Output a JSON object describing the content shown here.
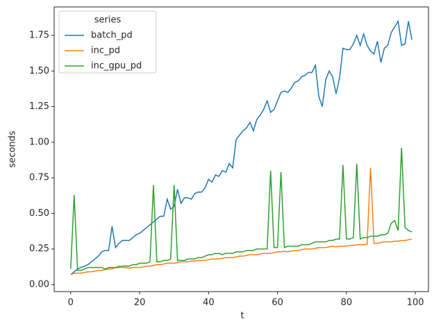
{
  "chart_data": {
    "type": "line",
    "x_label": "t",
    "y_label": "seconds",
    "legend_title": "series",
    "legend_loc": "upper left",
    "x": [
      0,
      1,
      2,
      3,
      4,
      5,
      6,
      7,
      8,
      9,
      10,
      11,
      12,
      13,
      14,
      15,
      16,
      17,
      18,
      19,
      20,
      21,
      22,
      23,
      24,
      25,
      26,
      27,
      28,
      29,
      30,
      31,
      32,
      33,
      34,
      35,
      36,
      37,
      38,
      39,
      40,
      41,
      42,
      43,
      44,
      45,
      46,
      47,
      48,
      49,
      50,
      51,
      52,
      53,
      54,
      55,
      56,
      57,
      58,
      59,
      60,
      61,
      62,
      63,
      64,
      65,
      66,
      67,
      68,
      69,
      70,
      71,
      72,
      73,
      74,
      75,
      76,
      77,
      78,
      79,
      80,
      81,
      82,
      83,
      84,
      85,
      86,
      87,
      88,
      89,
      90,
      91,
      92,
      93,
      94,
      95,
      96,
      97,
      98,
      99
    ],
    "series": [
      {
        "name": "batch_pd",
        "color": "#1f77b4",
        "values": [
          0.07,
          0.09,
          0.11,
          0.12,
          0.13,
          0.14,
          0.16,
          0.18,
          0.2,
          0.23,
          0.24,
          0.24,
          0.41,
          0.26,
          0.29,
          0.31,
          0.31,
          0.31,
          0.33,
          0.35,
          0.36,
          0.38,
          0.4,
          0.42,
          0.44,
          0.46,
          0.48,
          0.48,
          0.6,
          0.53,
          0.55,
          0.67,
          0.57,
          0.61,
          0.61,
          0.6,
          0.64,
          0.65,
          0.65,
          0.68,
          0.74,
          0.72,
          0.77,
          0.76,
          0.8,
          0.79,
          0.85,
          0.82,
          1.02,
          1.05,
          1.08,
          1.1,
          1.14,
          1.08,
          1.16,
          1.19,
          1.23,
          1.29,
          1.21,
          1.23,
          1.29,
          1.35,
          1.36,
          1.35,
          1.38,
          1.42,
          1.43,
          1.46,
          1.47,
          1.49,
          1.49,
          1.54,
          1.32,
          1.25,
          1.44,
          1.5,
          1.46,
          1.34,
          1.45,
          1.66,
          1.65,
          1.65,
          1.69,
          1.75,
          1.68,
          1.76,
          1.68,
          1.64,
          1.62,
          1.71,
          1.56,
          1.66,
          1.68,
          1.77,
          1.81,
          1.85,
          1.68,
          1.69,
          1.85,
          1.72
        ]
      },
      {
        "name": "inc_pd",
        "color": "#ff7f0e",
        "values": [
          0.07,
          0.08,
          0.08,
          0.08,
          0.085,
          0.09,
          0.09,
          0.095,
          0.1,
          0.1,
          0.105,
          0.11,
          0.11,
          0.12,
          0.13,
          0.12,
          0.12,
          0.115,
          0.12,
          0.12,
          0.12,
          0.125,
          0.13,
          0.13,
          0.135,
          0.14,
          0.14,
          0.145,
          0.15,
          0.15,
          0.15,
          0.155,
          0.16,
          0.16,
          0.16,
          0.165,
          0.165,
          0.17,
          0.17,
          0.17,
          0.175,
          0.18,
          0.18,
          0.18,
          0.185,
          0.19,
          0.19,
          0.19,
          0.195,
          0.2,
          0.2,
          0.205,
          0.21,
          0.21,
          0.21,
          0.215,
          0.22,
          0.22,
          0.22,
          0.225,
          0.23,
          0.23,
          0.235,
          0.23,
          0.235,
          0.24,
          0.24,
          0.245,
          0.25,
          0.25,
          0.25,
          0.255,
          0.26,
          0.26,
          0.26,
          0.265,
          0.27,
          0.265,
          0.27,
          0.27,
          0.27,
          0.275,
          0.275,
          0.28,
          0.28,
          0.28,
          0.285,
          0.82,
          0.29,
          0.29,
          0.295,
          0.3,
          0.3,
          0.3,
          0.305,
          0.305,
          0.31,
          0.31,
          0.315,
          0.32
        ]
      },
      {
        "name": "inc_gpu_pd",
        "color": "#2ca02c",
        "values": [
          0.11,
          0.63,
          0.1,
          0.1,
          0.11,
          0.12,
          0.12,
          0.12,
          0.12,
          0.12,
          0.11,
          0.12,
          0.12,
          0.12,
          0.12,
          0.13,
          0.13,
          0.13,
          0.14,
          0.14,
          0.15,
          0.15,
          0.15,
          0.16,
          0.7,
          0.16,
          0.16,
          0.17,
          0.17,
          0.18,
          0.7,
          0.17,
          0.17,
          0.17,
          0.18,
          0.18,
          0.18,
          0.19,
          0.19,
          0.2,
          0.21,
          0.21,
          0.22,
          0.22,
          0.21,
          0.22,
          0.22,
          0.22,
          0.23,
          0.23,
          0.23,
          0.24,
          0.24,
          0.24,
          0.25,
          0.25,
          0.25,
          0.25,
          0.8,
          0.26,
          0.26,
          0.79,
          0.26,
          0.27,
          0.27,
          0.27,
          0.27,
          0.28,
          0.28,
          0.28,
          0.29,
          0.3,
          0.3,
          0.3,
          0.3,
          0.31,
          0.31,
          0.32,
          0.32,
          0.84,
          0.32,
          0.32,
          0.33,
          0.85,
          0.32,
          0.33,
          0.33,
          0.34,
          0.34,
          0.34,
          0.35,
          0.35,
          0.36,
          0.43,
          0.45,
          0.38,
          0.96,
          0.4,
          0.38,
          0.37
        ]
      }
    ],
    "xlim": [
      -4.8,
      103.8
    ],
    "xticks": [
      0,
      20,
      40,
      60,
      80,
      100
    ],
    "ylim": [
      -0.049,
      1.95
    ],
    "yticks": [
      {
        "value": 0,
        "label": "0.00"
      },
      {
        "value": 0.25,
        "label": "0.25"
      },
      {
        "value": 0.5,
        "label": "0.50"
      },
      {
        "value": 0.75,
        "label": "0.75"
      },
      {
        "value": 1.0,
        "label": "1.00"
      },
      {
        "value": 1.25,
        "label": "1.25"
      },
      {
        "value": 1.5,
        "label": "1.50"
      },
      {
        "value": 1.75,
        "label": "1.75"
      }
    ]
  }
}
